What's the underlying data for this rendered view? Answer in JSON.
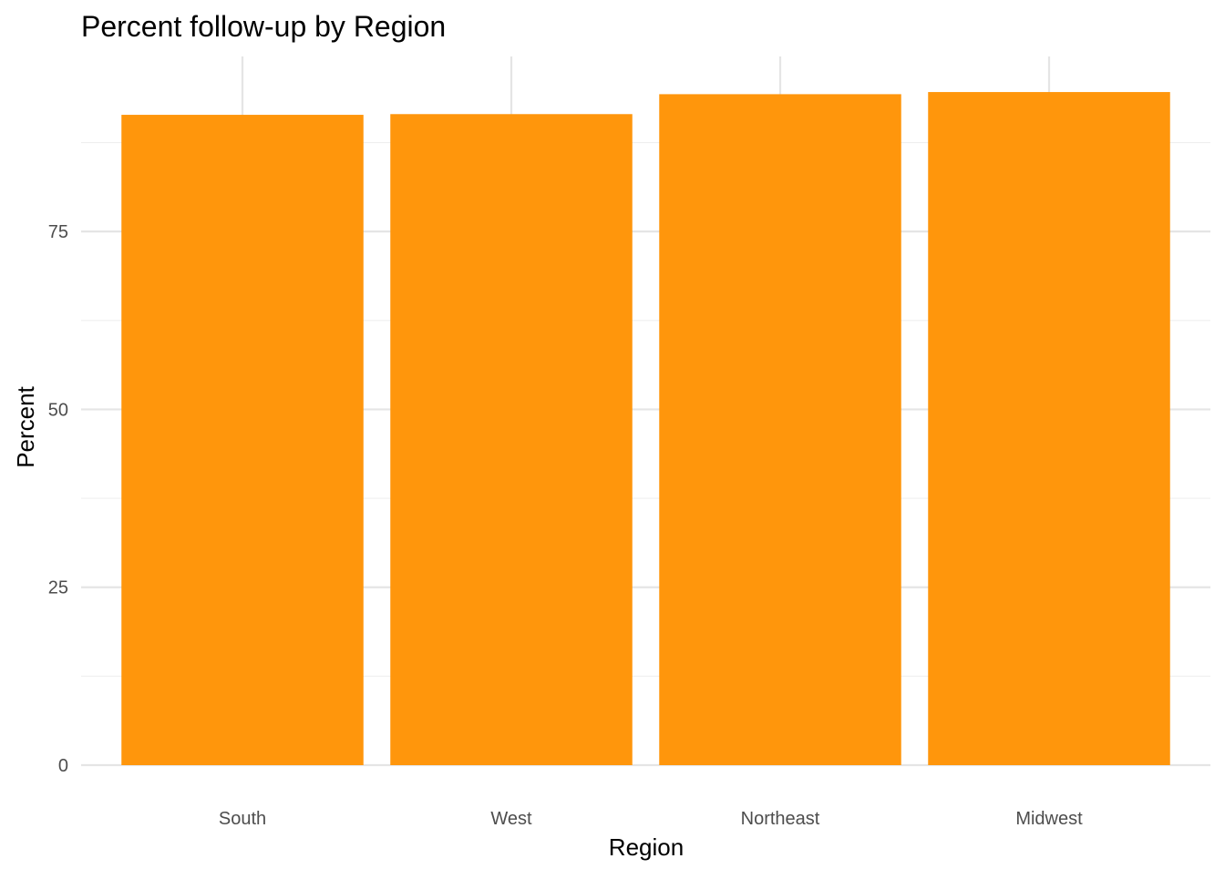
{
  "chart_data": {
    "type": "bar",
    "title": "Percent follow-up by Region",
    "xlabel": "Region",
    "ylabel": "Percent",
    "categories": [
      "South",
      "West",
      "Northeast",
      "Midwest"
    ],
    "values": [
      91.4,
      91.5,
      94.3,
      94.6
    ],
    "ylim": [
      0,
      99.6
    ],
    "yticks": [
      0,
      25,
      50,
      75
    ],
    "ytick_labels": [
      "0",
      "25",
      "50",
      "75"
    ],
    "grid": true,
    "legend": "none",
    "colors": {
      "bar": "#FF960C",
      "background": "#FFFFFF",
      "grid": "#E5E5E5"
    }
  }
}
